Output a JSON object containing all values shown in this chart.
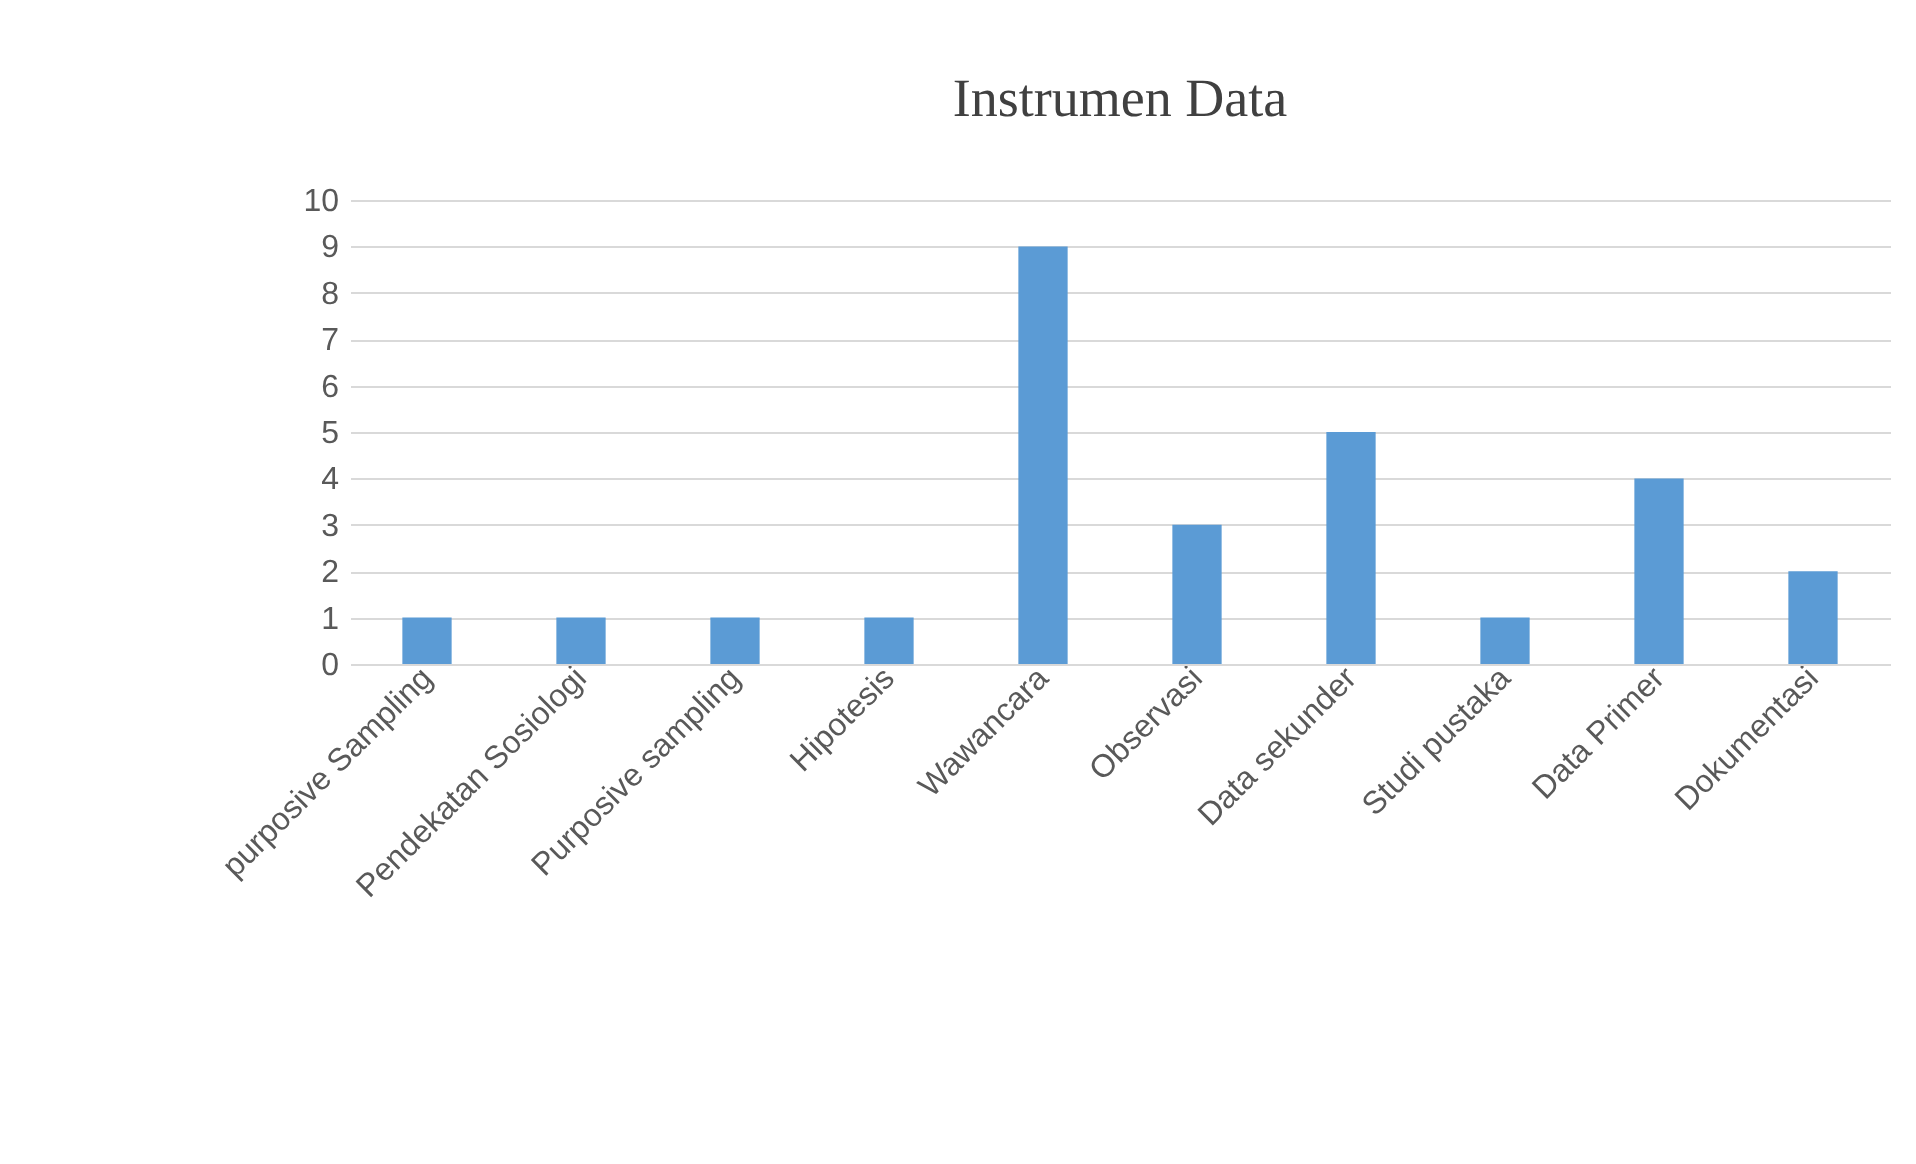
{
  "chart_data": {
    "type": "bar",
    "title": "Instrumen Data",
    "categories": [
      "purposive Sampling",
      "Pendekatan Sosiologi",
      "Purposive sampling",
      "Hipotesis",
      "Wawancara",
      "Observasi",
      "Data sekunder",
      "Studi pustaka",
      "Data Primer",
      "Dokumentasi"
    ],
    "values": [
      1,
      1,
      1,
      1,
      9,
      3,
      5,
      1,
      4,
      2
    ],
    "color": "#5b9bd5",
    "ylim": [
      0,
      10
    ],
    "yticks": [
      0,
      1,
      2,
      3,
      4,
      5,
      6,
      7,
      8,
      9,
      10
    ],
    "grid": "y"
  }
}
